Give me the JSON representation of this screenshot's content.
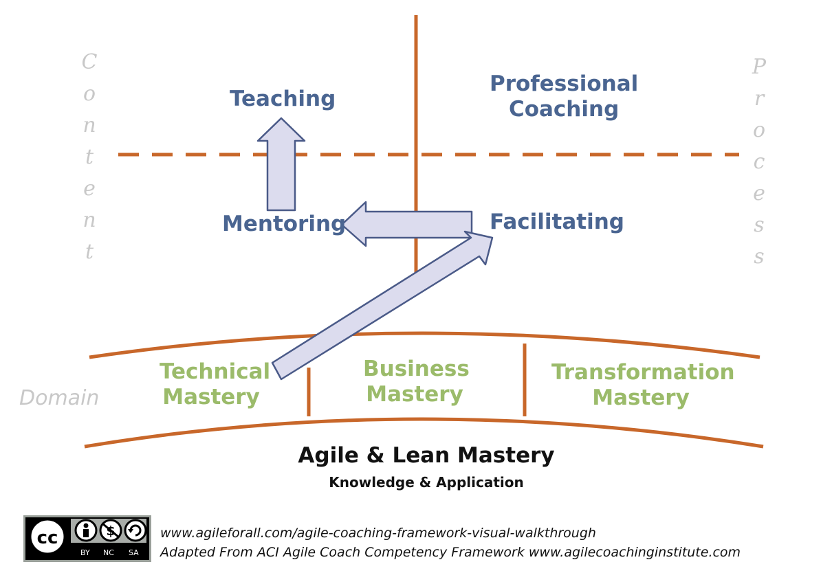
{
  "quadrants": {
    "teaching": "Teaching",
    "professional_coaching": [
      "Professional",
      "Coaching"
    ],
    "mentoring": "Mentoring",
    "facilitating": "Facilitating"
  },
  "axes": {
    "left_label": "Content",
    "right_label": "Process",
    "domain_label": "Domain"
  },
  "masteries": {
    "technical": [
      "Technical",
      "Mastery"
    ],
    "business": [
      "Business",
      "Mastery"
    ],
    "transformation": [
      "Transformation",
      "Mastery"
    ]
  },
  "foundation": {
    "title": "Agile & Lean Mastery",
    "subtitle": "Knowledge & Application"
  },
  "license": {
    "badge_text": [
      "BY",
      "NC",
      "SA"
    ],
    "badge_symbols": [
      "cc",
      "$"
    ],
    "icon": "creative-commons-by-nc-sa"
  },
  "credits": {
    "line1": "www.agileforall.com/agile-coaching-framework-visual-walkthrough",
    "line2": "Adapted From ACI Agile Coach Competency Framework www.agilecoachinginstitute.com"
  },
  "colors": {
    "orange": "#c8672a",
    "blue_text": "#4a6591",
    "green_text": "#9bbb6a",
    "gray_text": "#c8c8c8",
    "arrow_fill": "#dcdcee",
    "arrow_stroke": "#4a5a88"
  }
}
